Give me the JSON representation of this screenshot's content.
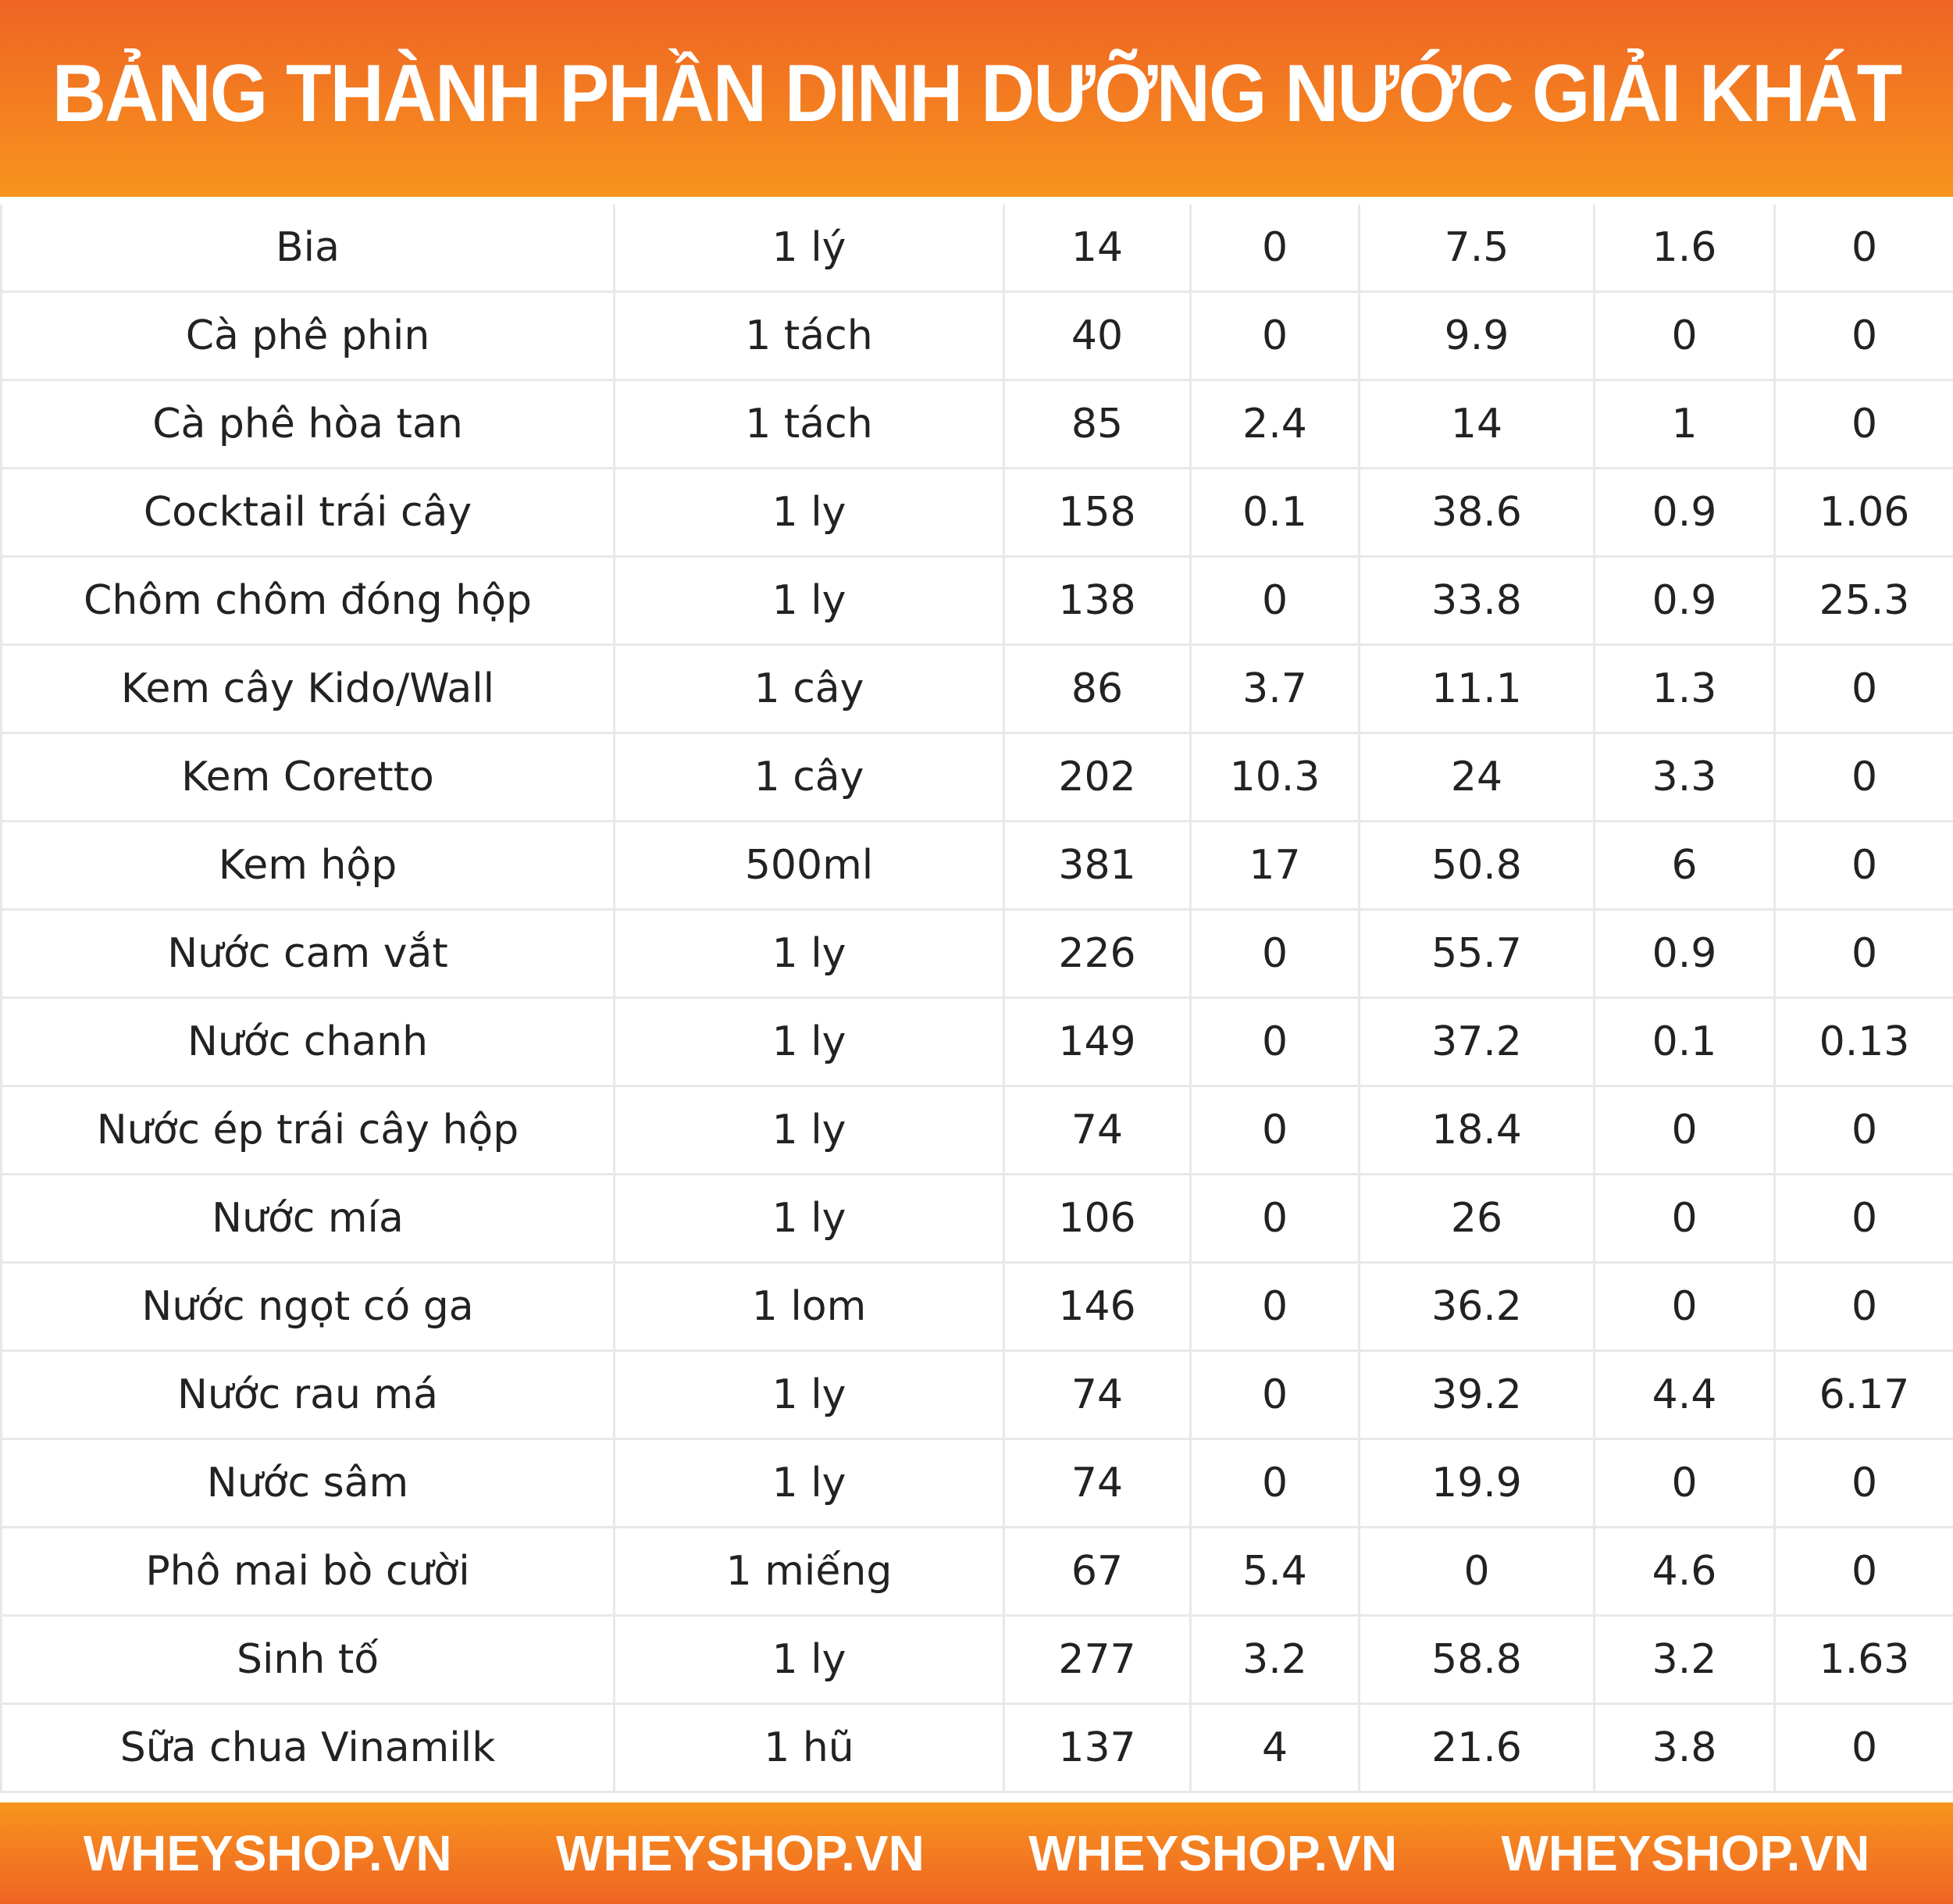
{
  "header": {
    "title": "BẢNG THÀNH PHẦN DINH DƯỠNG NƯỚC GIẢI KHÁT"
  },
  "rows": [
    [
      "Bia",
      "1 lý",
      "14",
      "0",
      "7.5",
      "1.6",
      "0"
    ],
    [
      "Cà phê phin",
      "1 tách",
      "40",
      "0",
      "9.9",
      "0",
      "0"
    ],
    [
      "Cà phê hòa tan",
      "1 tách",
      "85",
      "2.4",
      "14",
      "1",
      "0"
    ],
    [
      "Cocktail trái cây",
      "1 ly",
      "158",
      "0.1",
      "38.6",
      "0.9",
      "1.06"
    ],
    [
      "Chôm chôm đóng hộp",
      "1 ly",
      "138",
      "0",
      "33.8",
      "0.9",
      "25.3"
    ],
    [
      "Kem cây Kido/Wall",
      "1 cây",
      "86",
      "3.7",
      "11.1",
      "1.3",
      "0"
    ],
    [
      "Kem Coretto",
      "1 cây",
      "202",
      "10.3",
      "24",
      "3.3",
      "0"
    ],
    [
      "Kem hộp",
      "500ml",
      "381",
      "17",
      "50.8",
      "6",
      "0"
    ],
    [
      "Nước cam vắt",
      "1 ly",
      "226",
      "0",
      "55.7",
      "0.9",
      "0"
    ],
    [
      "Nước chanh",
      "1 ly",
      "149",
      "0",
      "37.2",
      "0.1",
      "0.13"
    ],
    [
      "Nước ép trái cây hộp",
      "1 ly",
      "74",
      "0",
      "18.4",
      "0",
      "0"
    ],
    [
      "Nước mía",
      "1 ly",
      "106",
      "0",
      "26",
      "0",
      "0"
    ],
    [
      "Nước ngọt có ga",
      "1 lom",
      "146",
      "0",
      "36.2",
      "0",
      "0"
    ],
    [
      "Nước rau má",
      "1 ly",
      "74",
      "0",
      "39.2",
      "4.4",
      "6.17"
    ],
    [
      "Nước sâm",
      "1 ly",
      "74",
      "0",
      "19.9",
      "0",
      "0"
    ],
    [
      "Phô mai bò cười",
      "1 miếng",
      "67",
      "5.4",
      "0",
      "4.6",
      "0"
    ],
    [
      "Sinh tố",
      "1 ly",
      "277",
      "3.2",
      "58.8",
      "3.2",
      "1.63"
    ],
    [
      "Sữa chua Vinamilk",
      "1 hũ",
      "137",
      "4",
      "21.6",
      "3.8",
      "0"
    ]
  ],
  "footer": {
    "brands": [
      "WHEYSHOP.VN",
      "WHEYSHOP.VN",
      "WHEYSHOP.VN",
      "WHEYSHOP.VN"
    ]
  },
  "colors": {
    "accent_top": "#ef6424",
    "accent_bottom": "#f7941d"
  }
}
